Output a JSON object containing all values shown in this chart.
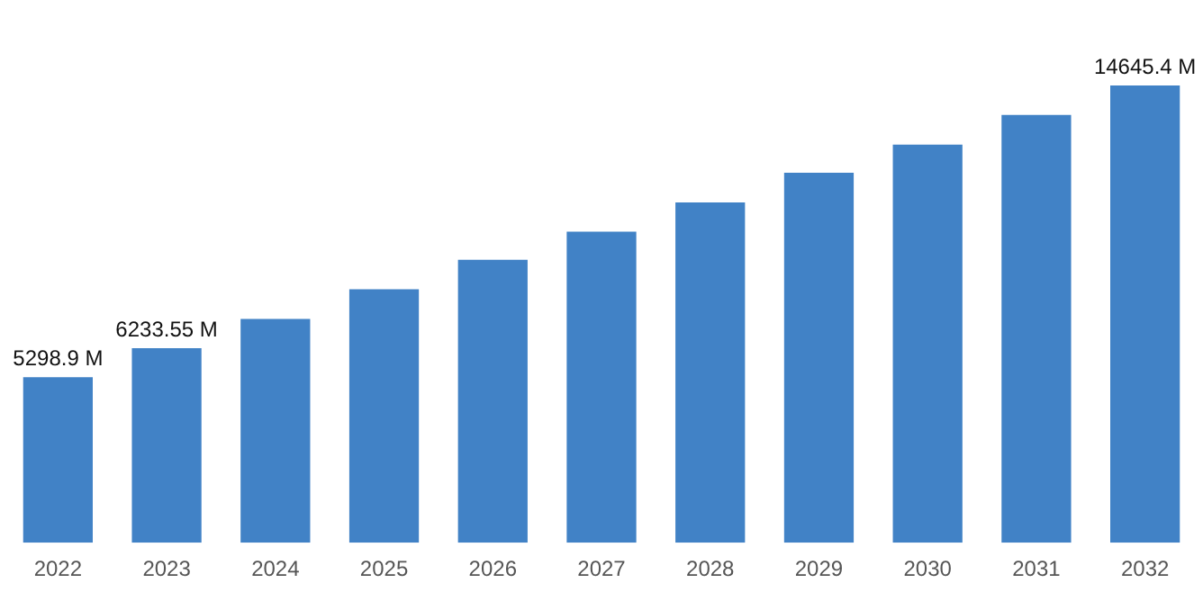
{
  "chart_data": {
    "type": "bar",
    "categories": [
      "2022",
      "2023",
      "2024",
      "2025",
      "2026",
      "2027",
      "2028",
      "2029",
      "2030",
      "2031",
      "2032"
    ],
    "values": [
      5298.9,
      6233.55,
      7170,
      8115,
      9060,
      9960,
      10900,
      11850,
      12750,
      13700,
      14645.4
    ],
    "value_labels": [
      "5298.9 M",
      "6233.55 M",
      null,
      null,
      null,
      null,
      null,
      null,
      null,
      null,
      "14645.4 M"
    ],
    "color": "#4182c6",
    "grid": false,
    "legend": false,
    "tick_labels": "x"
  }
}
